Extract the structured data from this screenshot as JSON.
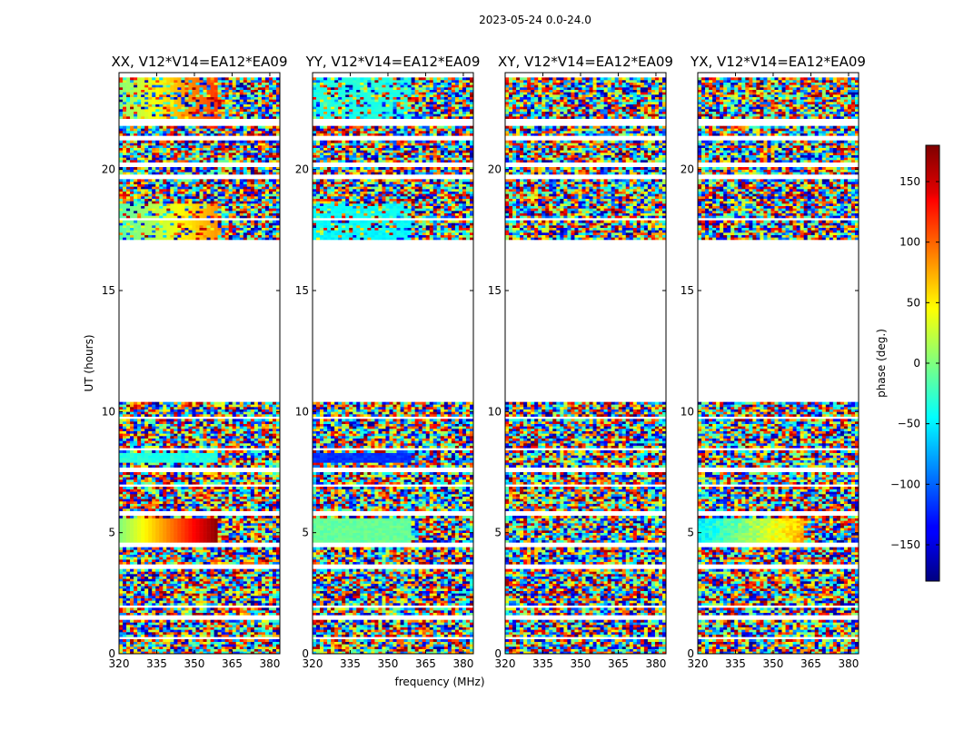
{
  "chart_data": {
    "type": "heatmap",
    "title": "2023-05-24 0.0-24.0",
    "xlabel": "frequency (MHz)",
    "ylabel": "UT (hours)",
    "xlim": [
      320,
      384
    ],
    "ylim": [
      0,
      24
    ],
    "xticks": [
      320,
      335,
      350,
      365,
      380
    ],
    "yticks": [
      0,
      5,
      10,
      15,
      20
    ],
    "panels": [
      {
        "title": "XX, V12*V14=EA12*EA09"
      },
      {
        "title": "YY, V12*V14=EA12*EA09"
      },
      {
        "title": "XY, V12*V14=EA12*EA09"
      },
      {
        "title": "YX, V12*V14=EA12*EA09"
      }
    ],
    "colorbar": {
      "label": "phase (deg.)",
      "range": [
        -180,
        180
      ],
      "ticks": [
        150,
        100,
        50,
        0,
        -50,
        -100,
        -150
      ]
    },
    "no_data_ut_range": [
      10.4,
      17.1
    ],
    "colormap": "jet"
  }
}
